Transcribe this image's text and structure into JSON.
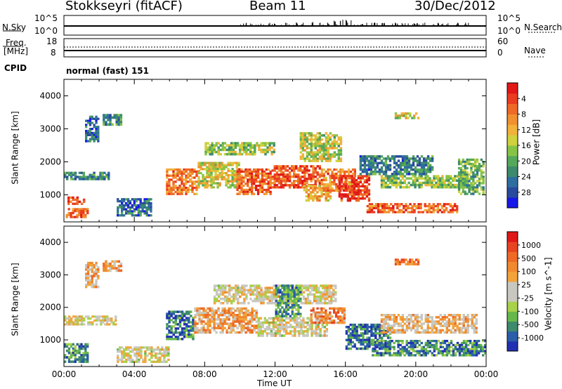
{
  "header": {
    "station": "Stokkseyri (fitACF)",
    "beam": "Beam 11",
    "date": "30/Dec/2012"
  },
  "param_panels": {
    "nsky_label": "N.Sky",
    "nsky_ticks": [
      "10^5",
      "10^0"
    ],
    "nsearch_label": "N.Search",
    "nsearch_ticks": [
      "10^5",
      "10^0"
    ],
    "freq_label": "Freq.",
    "freq_unit": "[MHz]",
    "freq_ticks": [
      "18",
      "8"
    ],
    "nave_label": "Nave",
    "nave_ticks": [
      "60",
      "0"
    ],
    "cpid_label": "CPID",
    "cpid_value": "normal (fast) 151"
  },
  "chart_data": [
    {
      "type": "heatmap",
      "name": "power",
      "xlabel": "",
      "ylabel": "Slant Range [km]",
      "xlim_hours": [
        0,
        24
      ],
      "ylim_km": [
        180,
        4500
      ],
      "y_ticks": [
        "1000",
        "2000",
        "3000",
        "4000"
      ],
      "colorbar": {
        "label": "Power [dB]",
        "ticks": [
          "4",
          "8",
          "12",
          "16",
          "20",
          "24",
          "28"
        ],
        "range": [
          0,
          32
        ],
        "colors": [
          "#1818e8",
          "#2a4a9e",
          "#2f6ea0",
          "#3d8a6c",
          "#55a85a",
          "#86c447",
          "#cfd13e",
          "#f2b13a",
          "#f09030",
          "#ee6a26",
          "#ea3c20",
          "#e01818"
        ]
      },
      "features": [
        {
          "t": [
            0.1,
            1.4
          ],
          "r": [
            300,
            600
          ],
          "level": 0.8
        },
        {
          "t": [
            0.2,
            1.2
          ],
          "r": [
            700,
            950
          ],
          "level": 0.85
        },
        {
          "t": [
            0.0,
            2.6
          ],
          "r": [
            1450,
            1700
          ],
          "level": 0.3
        },
        {
          "t": [
            1.2,
            2.0
          ],
          "r": [
            2600,
            3400
          ],
          "level": 0.2
        },
        {
          "t": [
            2.2,
            3.3
          ],
          "r": [
            3100,
            3450
          ],
          "level": 0.3
        },
        {
          "t": [
            5.8,
            7.6
          ],
          "r": [
            1000,
            1800
          ],
          "level": 0.75
        },
        {
          "t": [
            7.6,
            10.0
          ],
          "r": [
            1200,
            2000
          ],
          "level": 0.55
        },
        {
          "t": [
            9.8,
            11.8
          ],
          "r": [
            1000,
            1800
          ],
          "level": 0.8
        },
        {
          "t": [
            11.8,
            14.6
          ],
          "r": [
            1200,
            1900
          ],
          "level": 0.85
        },
        {
          "t": [
            13.6,
            15.2
          ],
          "r": [
            800,
            1300
          ],
          "level": 0.65
        },
        {
          "t": [
            14.6,
            16.6
          ],
          "r": [
            1100,
            1800
          ],
          "level": 0.75
        },
        {
          "t": [
            15.6,
            17.4
          ],
          "r": [
            800,
            1600
          ],
          "level": 0.9
        },
        {
          "t": [
            8.0,
            12.0
          ],
          "r": [
            2200,
            2600
          ],
          "level": 0.45
        },
        {
          "t": [
            13.4,
            15.8
          ],
          "r": [
            2000,
            2900
          ],
          "level": 0.5
        },
        {
          "t": [
            17.2,
            22.4
          ],
          "r": [
            450,
            750
          ],
          "level": 0.8
        },
        {
          "t": [
            18.0,
            23.0
          ],
          "r": [
            1200,
            1600
          ],
          "level": 0.45
        },
        {
          "t": [
            22.4,
            23.9
          ],
          "r": [
            1000,
            2100
          ],
          "level": 0.4
        },
        {
          "t": [
            18.8,
            20.2
          ],
          "r": [
            3300,
            3500
          ],
          "level": 0.55
        },
        {
          "t": [
            3.0,
            5.0
          ],
          "r": [
            350,
            900
          ],
          "level": 0.2
        },
        {
          "t": [
            16.8,
            21.0
          ],
          "r": [
            1600,
            2200
          ],
          "level": 0.25
        }
      ]
    },
    {
      "type": "heatmap",
      "name": "velocity",
      "xlabel": "Time UT",
      "ylabel": "Slant Range [km]",
      "xlim_hours": [
        0,
        24
      ],
      "ylim_km": [
        180,
        4500
      ],
      "x_ticks": [
        "00:00",
        "04:00",
        "08:00",
        "12:00",
        "16:00",
        "20:00",
        "00:00"
      ],
      "y_ticks": [
        "1000",
        "2000",
        "3000",
        "4000"
      ],
      "colorbar": {
        "label": "Velocity [m s^-1]",
        "ticks": [
          "1000",
          "500",
          "100",
          "25",
          "-25",
          "-100",
          "-500",
          "-1000"
        ],
        "colors": [
          "#2030b0",
          "#2a5ea8",
          "#3d8a6c",
          "#67b84c",
          "#a8d14a",
          "#c8c8c0",
          "#c8c8c0",
          "#f2a43a",
          "#f08a30",
          "#ee6a26",
          "#e84422",
          "#e01818"
        ]
      },
      "features": [
        {
          "t": [
            0.0,
            1.4
          ],
          "r": [
            300,
            900
          ],
          "level": 0.2
        },
        {
          "t": [
            0.0,
            3.0
          ],
          "r": [
            1450,
            1750
          ],
          "level": 0.5
        },
        {
          "t": [
            1.2,
            2.0
          ],
          "r": [
            2600,
            3400
          ],
          "level": 0.62
        },
        {
          "t": [
            2.2,
            3.3
          ],
          "r": [
            3100,
            3450
          ],
          "level": 0.65
        },
        {
          "t": [
            5.8,
            7.4
          ],
          "r": [
            1000,
            1900
          ],
          "level": 0.18
        },
        {
          "t": [
            7.4,
            11.0
          ],
          "r": [
            1200,
            2000
          ],
          "level": 0.65
        },
        {
          "t": [
            11.0,
            15.0
          ],
          "r": [
            1100,
            1700
          ],
          "level": 0.5
        },
        {
          "t": [
            8.5,
            15.5
          ],
          "r": [
            2100,
            2700
          ],
          "level": 0.5
        },
        {
          "t": [
            14.0,
            16.0
          ],
          "r": [
            1500,
            2000
          ],
          "level": 0.72
        },
        {
          "t": [
            16.0,
            18.6
          ],
          "r": [
            700,
            1500
          ],
          "level": 0.15
        },
        {
          "t": [
            17.5,
            24.0
          ],
          "r": [
            500,
            1000
          ],
          "level": 0.2
        },
        {
          "t": [
            18.0,
            23.5
          ],
          "r": [
            1200,
            1800
          ],
          "level": 0.6
        },
        {
          "t": [
            18.8,
            20.2
          ],
          "r": [
            3300,
            3500
          ],
          "level": 0.75
        },
        {
          "t": [
            12.0,
            13.5
          ],
          "r": [
            1700,
            2700
          ],
          "level": 0.22
        },
        {
          "t": [
            3.0,
            6.0
          ],
          "r": [
            300,
            800
          ],
          "level": 0.5
        }
      ]
    }
  ]
}
